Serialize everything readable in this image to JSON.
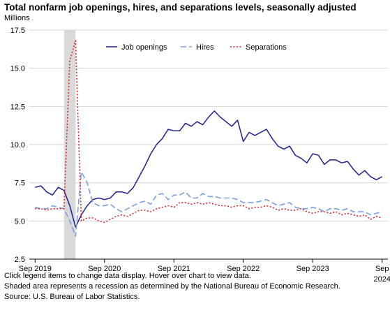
{
  "chart_data": {
    "type": "line",
    "title": "Total nonfarm job openings, hires, and separations levels, seasonally adjusted",
    "ylabel": "Millions",
    "ylim": [
      2.5,
      17.5
    ],
    "y_ticks": [
      "2.5",
      "5.0",
      "7.5",
      "10.0",
      "12.5",
      "15.0",
      "17.5"
    ],
    "x_range": [
      "2019-08",
      "2024-10"
    ],
    "x_ticks": [
      {
        "date": "2019-09",
        "line1": "Sep 2019",
        "line2": ""
      },
      {
        "date": "2020-09",
        "line1": "Sep 2020",
        "line2": ""
      },
      {
        "date": "2021-09",
        "line1": "Sep 2021",
        "line2": ""
      },
      {
        "date": "2022-09",
        "line1": "Sep 2022",
        "line2": ""
      },
      {
        "date": "2023-09",
        "line1": "Sep 2023",
        "line2": ""
      },
      {
        "date": "2024-09",
        "line1": "Sep",
        "line2": "2024"
      }
    ],
    "recession": {
      "start": "2020-02",
      "end": "2020-04"
    },
    "grid": "horizontal",
    "legend_position": "top",
    "x": [
      "2019-09",
      "2019-10",
      "2019-11",
      "2019-12",
      "2020-01",
      "2020-02",
      "2020-03",
      "2020-04",
      "2020-05",
      "2020-06",
      "2020-07",
      "2020-08",
      "2020-09",
      "2020-10",
      "2020-11",
      "2020-12",
      "2021-01",
      "2021-02",
      "2021-03",
      "2021-04",
      "2021-05",
      "2021-06",
      "2021-07",
      "2021-08",
      "2021-09",
      "2021-10",
      "2021-11",
      "2021-12",
      "2022-01",
      "2022-02",
      "2022-03",
      "2022-04",
      "2022-05",
      "2022-06",
      "2022-07",
      "2022-08",
      "2022-09",
      "2022-10",
      "2022-11",
      "2022-12",
      "2023-01",
      "2023-02",
      "2023-03",
      "2023-04",
      "2023-05",
      "2023-06",
      "2023-07",
      "2023-08",
      "2023-09",
      "2023-10",
      "2023-11",
      "2023-12",
      "2024-01",
      "2024-02",
      "2024-03",
      "2024-04",
      "2024-05",
      "2024-06",
      "2024-07",
      "2024-08",
      "2024-09"
    ],
    "series": [
      {
        "name": "Job openings",
        "color": "#1f1f8f",
        "dash": "solid",
        "values": [
          7.2,
          7.3,
          6.9,
          6.7,
          7.2,
          7.0,
          6.0,
          4.6,
          5.4,
          6.0,
          6.4,
          6.5,
          6.4,
          6.5,
          6.9,
          6.9,
          6.8,
          7.2,
          7.9,
          8.6,
          9.4,
          10.0,
          10.4,
          11.0,
          10.9,
          10.9,
          11.4,
          11.2,
          11.5,
          11.3,
          11.8,
          12.2,
          11.8,
          11.5,
          11.2,
          11.6,
          10.2,
          10.8,
          10.6,
          10.8,
          11.0,
          10.4,
          9.9,
          9.7,
          9.9,
          9.3,
          9.1,
          8.8,
          9.4,
          9.3,
          8.7,
          9.0,
          9.0,
          8.8,
          8.9,
          8.4,
          8.0,
          8.3,
          7.9,
          7.7,
          7.9
        ]
      },
      {
        "name": "Hires",
        "color": "#7b9fe3",
        "dash": "dashed",
        "values": [
          5.9,
          5.8,
          5.8,
          6.0,
          5.9,
          5.8,
          5.0,
          4.0,
          8.2,
          7.5,
          6.2,
          6.0,
          6.0,
          6.1,
          5.8,
          5.6,
          5.8,
          6.0,
          6.2,
          6.3,
          6.1,
          6.7,
          6.8,
          6.4,
          6.7,
          6.7,
          6.9,
          6.5,
          6.5,
          6.8,
          6.6,
          6.6,
          6.5,
          6.5,
          6.5,
          6.4,
          6.2,
          6.2,
          6.2,
          6.3,
          6.4,
          6.2,
          6.0,
          6.1,
          6.2,
          5.9,
          5.8,
          5.8,
          5.9,
          5.8,
          5.6,
          5.8,
          5.8,
          5.7,
          5.8,
          5.6,
          5.6,
          5.6,
          5.4,
          5.5,
          5.6
        ]
      },
      {
        "name": "Separations",
        "color": "#d62728",
        "dash": "dotted",
        "values": [
          5.8,
          5.8,
          5.7,
          5.8,
          5.8,
          5.8,
          15.5,
          16.8,
          5.0,
          5.2,
          5.2,
          5.0,
          4.9,
          5.1,
          5.3,
          5.4,
          5.3,
          5.5,
          5.7,
          5.7,
          5.6,
          5.8,
          5.9,
          6.0,
          5.9,
          6.2,
          6.2,
          6.1,
          6.2,
          6.1,
          6.2,
          6.1,
          6.0,
          6.0,
          5.9,
          6.0,
          6.0,
          5.8,
          5.9,
          5.9,
          6.0,
          5.9,
          5.7,
          5.8,
          5.7,
          5.7,
          5.8,
          5.6,
          5.5,
          5.6,
          5.6,
          5.5,
          5.6,
          5.4,
          5.5,
          5.4,
          5.3,
          5.4,
          5.1,
          5.3,
          5.2
        ]
      }
    ]
  },
  "footnotes": [
    "Click legend items to change data display. Hover over chart to view data.",
    "Shaded area represents a recession as determined by the National Bureau of Economic Research.",
    "Source: U.S. Bureau of Labor Statistics."
  ]
}
